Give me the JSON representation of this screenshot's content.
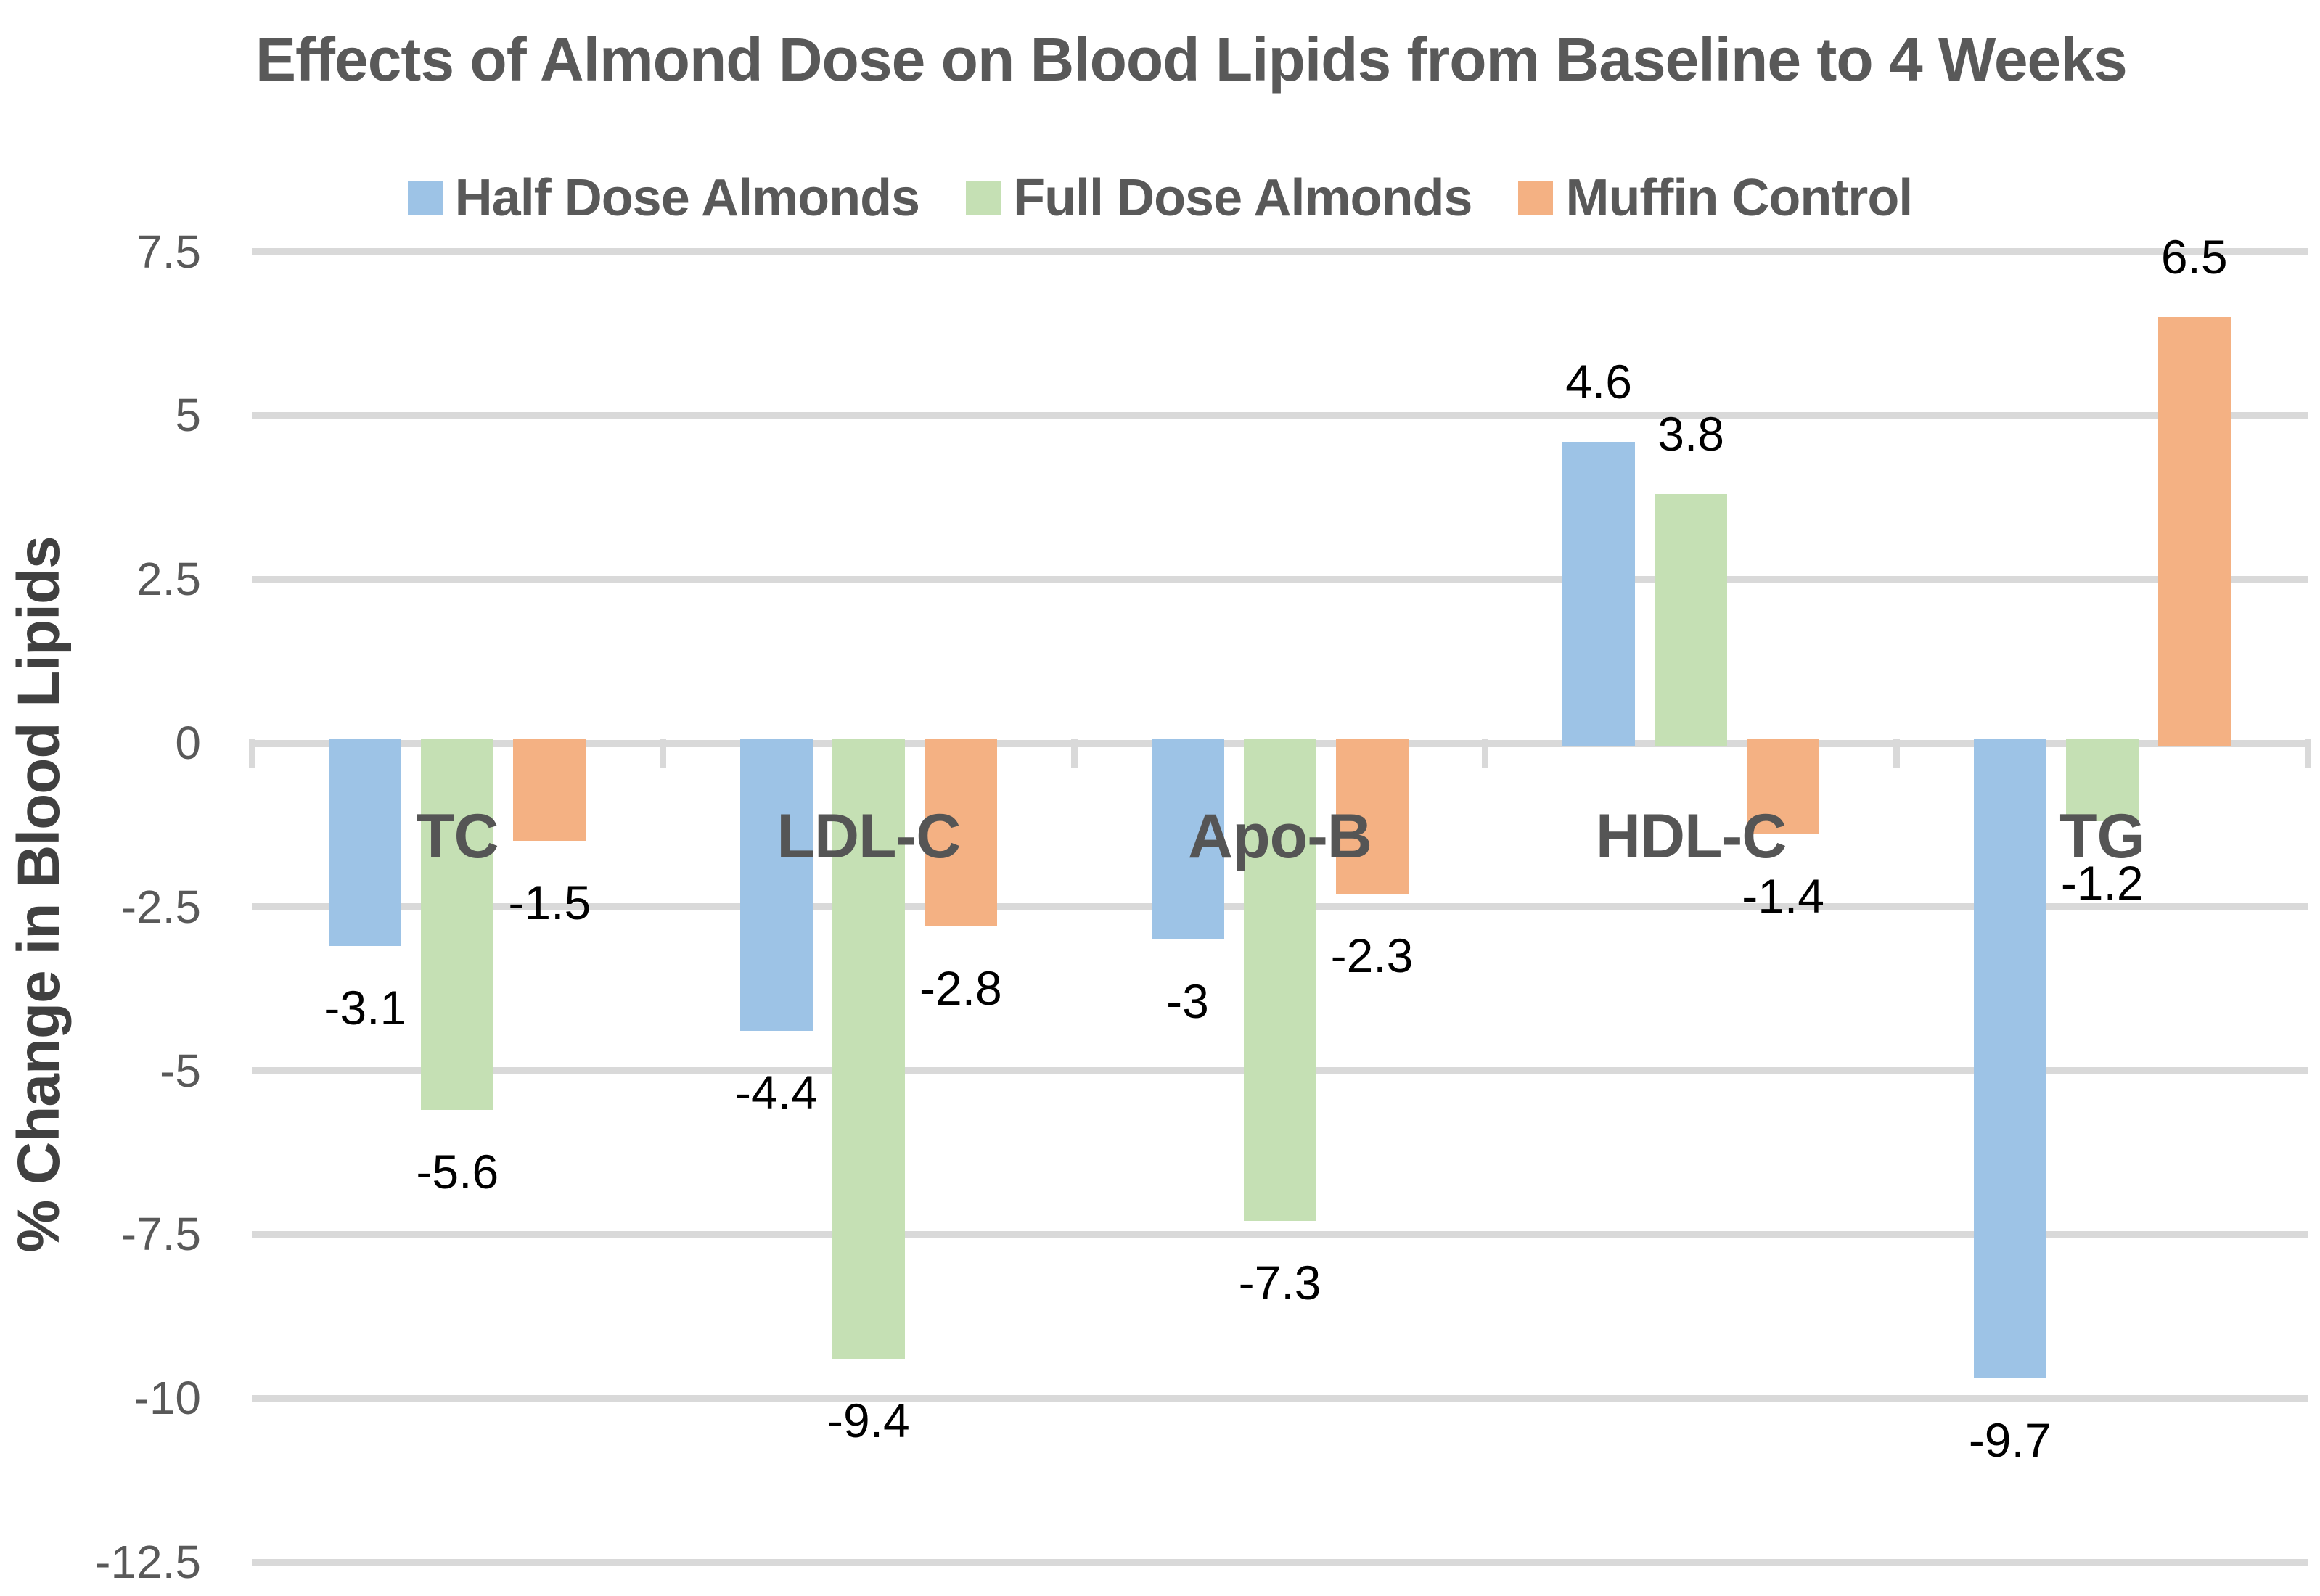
{
  "chart_data": {
    "type": "bar",
    "title": "Effects of Almond Dose on Blood Lipids from Baseline to 4 Weeks",
    "ylabel": "% Change in Blood Lipids",
    "xlabel": "",
    "categories": [
      "TC",
      "LDL-C",
      "Apo-B",
      "HDL-C",
      "TG"
    ],
    "series": [
      {
        "name": "Half Dose Almonds",
        "color": "#9DC3E6",
        "values": [
          -3.1,
          -4.4,
          -3,
          4.6,
          -9.7
        ]
      },
      {
        "name": "Full Dose Almonds",
        "color": "#C5E0B4",
        "values": [
          -5.6,
          -9.4,
          -7.3,
          3.8,
          -1.2
        ]
      },
      {
        "name": "Muffin Control",
        "color": "#F4B183",
        "values": [
          -1.5,
          -2.8,
          -2.3,
          -1.4,
          6.5
        ]
      }
    ],
    "yticks": [
      7.5,
      5,
      2.5,
      0,
      -2.5,
      -5,
      -7.5,
      -10,
      -12.5
    ],
    "ylim": [
      -12.5,
      7.5
    ],
    "grid": true,
    "legend_position": "top",
    "data_labels_visible": true
  },
  "style": {
    "title_color": "#595959",
    "category_label_color": "#555555",
    "tick_label_color": "#595959",
    "axis_title_color": "#404040",
    "data_label_color": "#000000",
    "gridline_color": "#D9D9D9",
    "background": "#FFFFFF"
  }
}
